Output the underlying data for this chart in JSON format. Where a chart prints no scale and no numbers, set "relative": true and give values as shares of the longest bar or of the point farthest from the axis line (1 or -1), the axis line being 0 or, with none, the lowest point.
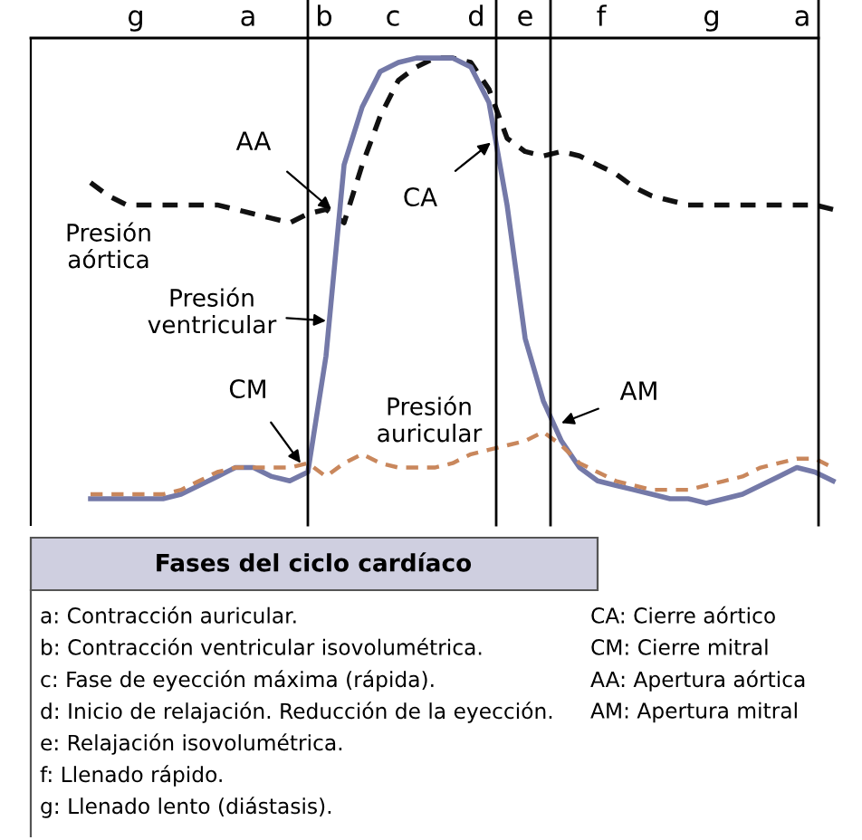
{
  "chart_data": {
    "type": "line",
    "relative": true,
    "legend": false,
    "categories": [
      null,
      null,
      null,
      null,
      null,
      null,
      null,
      null,
      null,
      null,
      null,
      null,
      null,
      null,
      null,
      null,
      null,
      null,
      null,
      null,
      null,
      null,
      null,
      null,
      null,
      null,
      null,
      null,
      null,
      null,
      null,
      null,
      null,
      null,
      null,
      null,
      null,
      null,
      null,
      null,
      null,
      null
    ],
    "series": [
      {
        "name": "Presión aórtica",
        "color": "#111111",
        "line_style": "dashed",
        "values": [
          0.72,
          0.69,
          0.67,
          0.67,
          0.67,
          0.67,
          0.67,
          0.67,
          0.66,
          0.65,
          0.64,
          0.63,
          0.65,
          0.66,
          0.63,
          0.76,
          0.87,
          0.95,
          0.98,
          1.0,
          1.0,
          0.99,
          0.93,
          0.82,
          0.79,
          0.78,
          0.79,
          0.78,
          0.76,
          0.74,
          0.71,
          0.69,
          0.68,
          0.67,
          0.67,
          0.67,
          0.67,
          0.67,
          0.67,
          0.67,
          0.67,
          0.66
        ]
      },
      {
        "name": "Presión ventricular",
        "color": "#7479a8",
        "line_style": "solid",
        "values": [
          0.01,
          0.01,
          0.01,
          0.01,
          0.01,
          0.02,
          0.04,
          0.06,
          0.08,
          0.08,
          0.06,
          0.05,
          0.07,
          0.33,
          0.76,
          0.89,
          0.97,
          0.99,
          1.0,
          1.0,
          1.0,
          0.98,
          0.9,
          0.67,
          0.37,
          0.23,
          0.14,
          0.08,
          0.05,
          0.04,
          0.03,
          0.02,
          0.01,
          0.01,
          0,
          0.01,
          0.02,
          0.04,
          0.06,
          0.08,
          0.07,
          0.05
        ]
      },
      {
        "name": "Presión auricular",
        "color": "#c9875c",
        "line_style": "dashed",
        "values": [
          0.02,
          0.02,
          0.02,
          0.02,
          0.02,
          0.03,
          0.05,
          0.07,
          0.08,
          0.08,
          0.08,
          0.08,
          0.09,
          0.06,
          0.09,
          0.11,
          0.09,
          0.08,
          0.08,
          0.08,
          0.09,
          0.11,
          0.12,
          0.13,
          0.14,
          0.16,
          0.13,
          0.09,
          0.07,
          0.05,
          0.04,
          0.03,
          0.03,
          0.03,
          0.04,
          0.05,
          0.06,
          0.08,
          0.09,
          0.1,
          0.1,
          0.08
        ]
      }
    ],
    "annotations": [
      "AA",
      "CA",
      "CM",
      "AM",
      "Fases del ciclo cardíaco",
      "a: Contracción auricular.",
      "b: Contracción ventricular isovolumétrica.",
      "c: Fase de eyección máxima (rápida).",
      "d: Inicio de relajación. Reducción de la eyección.",
      "e: Relajación isovolumétrica.",
      "f: Llenado rápido.",
      "g: Llenado lento (diástasis).",
      "CA: Cierre aórtico",
      "CM: Cierre mitral",
      "AA: Apertura aórtica",
      "AM: Apertura mitral",
      "g",
      "a",
      "b",
      "c",
      "d",
      "e",
      "f",
      "g",
      "a"
    ]
  }
}
